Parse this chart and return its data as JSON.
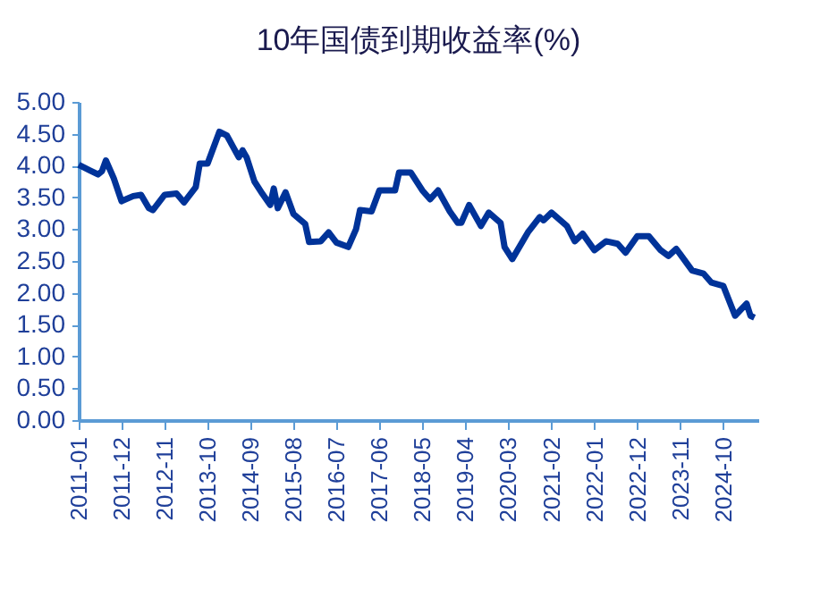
{
  "chart_data": {
    "type": "line",
    "title": "10年国债到期收益率(%)",
    "x": [
      "2011-01",
      "2011-04",
      "2011-06",
      "2011-07",
      "2011-08",
      "2011-10",
      "2011-12",
      "2012-03",
      "2012-05",
      "2012-07",
      "2012-08",
      "2012-11",
      "2013-02",
      "2013-04",
      "2013-07",
      "2013-08",
      "2013-10",
      "2014-01",
      "2014-03",
      "2014-06",
      "2014-07",
      "2014-08",
      "2014-10",
      "2014-12",
      "2015-02",
      "2015-03",
      "2015-04",
      "2015-06",
      "2015-08",
      "2015-11",
      "2015-12",
      "2016-03",
      "2016-05",
      "2016-07",
      "2016-10",
      "2016-12",
      "2017-01",
      "2017-04",
      "2017-06",
      "2017-08",
      "2017-10",
      "2017-11",
      "2018-02",
      "2018-05",
      "2018-07",
      "2018-09",
      "2018-12",
      "2019-02",
      "2019-03",
      "2019-05",
      "2019-08",
      "2019-10",
      "2020-01",
      "2020-02",
      "2020-04",
      "2020-08",
      "2020-11",
      "2020-12",
      "2021-02",
      "2021-06",
      "2021-08",
      "2021-10",
      "2022-01",
      "2022-04",
      "2022-07",
      "2022-09",
      "2022-12",
      "2023-03",
      "2023-06",
      "2023-08",
      "2023-10",
      "2024-02",
      "2024-05",
      "2024-07",
      "2024-10",
      "2025-01",
      "2025-04",
      "2025-05",
      "2025-06"
    ],
    "series": [
      {
        "color": "#003399",
        "values": [
          4.01,
          3.92,
          3.86,
          3.91,
          4.08,
          3.8,
          3.44,
          3.52,
          3.54,
          3.33,
          3.3,
          3.54,
          3.56,
          3.42,
          3.66,
          4.03,
          4.03,
          4.53,
          4.47,
          4.13,
          4.24,
          4.13,
          3.75,
          3.56,
          3.38,
          3.64,
          3.33,
          3.58,
          3.24,
          3.08,
          2.8,
          2.81,
          2.95,
          2.79,
          2.72,
          3.0,
          3.3,
          3.28,
          3.61,
          3.61,
          3.61,
          3.89,
          3.89,
          3.61,
          3.47,
          3.61,
          3.28,
          3.1,
          3.1,
          3.38,
          3.05,
          3.26,
          3.1,
          2.72,
          2.53,
          2.95,
          3.19,
          3.14,
          3.26,
          3.05,
          2.81,
          2.93,
          2.67,
          2.81,
          2.77,
          2.63,
          2.89,
          2.89,
          2.67,
          2.58,
          2.69,
          2.35,
          2.3,
          2.16,
          2.11,
          1.64,
          1.83,
          1.64,
          1.61
        ]
      }
    ],
    "xlim": [
      "2011-01",
      "2025-07"
    ],
    "xticks": [
      "2011-01",
      "2011-12",
      "2012-11",
      "2013-10",
      "2014-09",
      "2015-08",
      "2016-07",
      "2017-06",
      "2018-05",
      "2019-04",
      "2020-03",
      "2021-02",
      "2022-01",
      "2022-12",
      "2023-11",
      "2024-10"
    ],
    "ylim": [
      0,
      5
    ],
    "yticks": [
      {
        "value": 0,
        "label": "0.00"
      },
      {
        "value": 0.5,
        "label": "0.50"
      },
      {
        "value": 1,
        "label": "1.00"
      },
      {
        "value": 1.5,
        "label": "1.50"
      },
      {
        "value": 2,
        "label": "2.00"
      },
      {
        "value": 2.5,
        "label": "2.50"
      },
      {
        "value": 3,
        "label": "3.00"
      },
      {
        "value": 3.5,
        "label": "3.50"
      },
      {
        "value": 4,
        "label": "4.00"
      },
      {
        "value": 4.5,
        "label": "4.50"
      },
      {
        "value": 5,
        "label": "5.00"
      }
    ],
    "grid": false,
    "marker": "none",
    "line_style": "solid"
  }
}
